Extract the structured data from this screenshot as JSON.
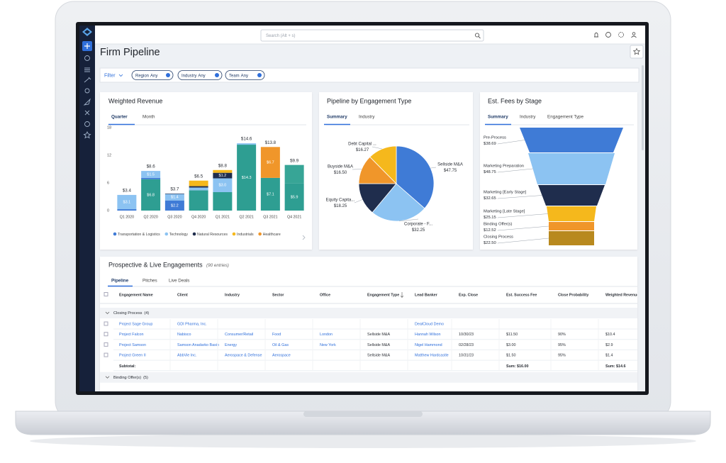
{
  "app": {
    "search_placeholder": "Search (Alt + s)",
    "page_title": "Firm Pipeline"
  },
  "filters": {
    "label": "Filter",
    "items": [
      {
        "name": "Region",
        "value": "Any"
      },
      {
        "name": "Industry",
        "value": "Any"
      },
      {
        "name": "Team",
        "value": "Any"
      }
    ]
  },
  "chart_data": [
    {
      "type": "bar",
      "stacked": true,
      "title": "Weighted Revenue",
      "tabs": [
        "Quarter",
        "Month"
      ],
      "categories": [
        "Q1 2020",
        "Q2 2020",
        "Q3 2020",
        "Q4 2020",
        "Q1 2021",
        "Q2 2021",
        "Q3 2021",
        "Q4 2021"
      ],
      "ylim": [
        0,
        18
      ],
      "yticks": [
        0,
        6,
        12,
        18
      ],
      "grid": false,
      "series": [
        {
          "color": "#2e9e92",
          "values": [
            0,
            6.8,
            0,
            4.4,
            4.0,
            14.3,
            7.1,
            5.9
          ],
          "value_labels": [
            null,
            "$6.8",
            null,
            null,
            null,
            "$14.3",
            "$7.1",
            "$5.9"
          ]
        },
        {
          "color": "#37a596",
          "values": [
            0,
            0,
            0,
            0,
            0,
            0,
            0,
            4.0
          ]
        },
        {
          "name": "Transportation & Logistics",
          "color": "#3f7bd6",
          "values": [
            0.3,
            0.3,
            2.2,
            0,
            0,
            0,
            0,
            0
          ],
          "value_labels": [
            null,
            null,
            "$2.2",
            null,
            null,
            null,
            null,
            null
          ]
        },
        {
          "name": "Technology",
          "color": "#8cc3f2",
          "values": [
            3.1,
            1.5,
            1.4,
            0.6,
            3.0,
            0.3,
            0,
            0
          ],
          "value_labels": [
            "$3.1",
            "$1.5",
            "$1.4",
            null,
            "$3.0",
            null,
            null,
            null
          ]
        },
        {
          "name": "Natural Resources",
          "color": "#1f2d4d",
          "values": [
            0,
            0,
            0.1,
            0.3,
            1.2,
            0,
            0,
            0
          ],
          "value_labels": [
            null,
            null,
            null,
            null,
            "$1.2",
            null,
            null,
            null
          ]
        },
        {
          "name": "Industrials",
          "color": "#f5b81c",
          "values": [
            0,
            0,
            0,
            1.2,
            0.6,
            0,
            0,
            0
          ]
        },
        {
          "name": "Healthcare",
          "color": "#f0962a",
          "values": [
            0,
            0,
            0,
            0,
            0,
            0,
            6.7,
            0
          ],
          "value_labels": [
            null,
            null,
            null,
            null,
            null,
            null,
            "$6.7",
            null
          ]
        }
      ],
      "totals": [
        3.4,
        8.6,
        3.7,
        6.5,
        8.8,
        14.6,
        13.8,
        9.9
      ],
      "total_labels": [
        "$3.4",
        "$8.6",
        "$3.7",
        "$6.5",
        "$8.8",
        "$14.6",
        "$13.8",
        "$9.9"
      ]
    },
    {
      "type": "pie",
      "title": "Pipeline by Engagement Type",
      "tabs": [
        "Summary",
        "Industry"
      ],
      "categories": [
        "Sellside M&A",
        "Corporate - F...",
        "Equity Capita...",
        "Buyside M&A",
        "Debt Capital ..."
      ],
      "values": [
        47.75,
        32.25,
        18.25,
        16.5,
        16.27
      ],
      "value_labels": [
        "$47.75",
        "$32.25",
        "$18.25",
        "$16.50",
        "$16.27"
      ],
      "colors": [
        "#3f7bd6",
        "#8cc3f2",
        "#1f2d4d",
        "#f0962a",
        "#f5b81c"
      ]
    },
    {
      "type": "funnel",
      "title": "Est. Fees by Stage",
      "tabs": [
        "Summary",
        "Industry",
        "Engagement Type"
      ],
      "categories": [
        "Pre-Process",
        "Marketing Preparation",
        "Marketing [Early Stage]",
        "Marketing [Late Stage]",
        "Binding Offer(s)",
        "Closing Process"
      ],
      "values": [
        38.69,
        48.75,
        32.65,
        25.15,
        12.52,
        22.5
      ],
      "value_labels": [
        "$38.69",
        "$48.75",
        "$32.65",
        "$25.15",
        "$12.52",
        "$22.50"
      ],
      "colors": [
        "#3f7bd6",
        "#8cc3f2",
        "#1f2d4d",
        "#f5b81c",
        "#f0962a",
        "#b8891e"
      ]
    }
  ],
  "engagements": {
    "title": "Prospective & Live Engagements",
    "count": "(90 entries)",
    "tabs": [
      "Pipeline",
      "Pitches",
      "Live Deals"
    ],
    "columns": [
      "Engagement Name",
      "Client",
      "Industry",
      "Sector",
      "Office",
      "Engagement Type",
      "Lead Banker",
      "Exp. Close",
      "Est. Success Fee",
      "Close Probability",
      "Weighted Revenue"
    ],
    "groups": [
      {
        "label": "Closing Process",
        "count": "(4)",
        "rows": [
          [
            "Project Sage Group",
            "GDI Pharma, Inc.",
            null,
            null,
            null,
            null,
            "DealCloud Demo",
            null,
            null,
            null,
            null
          ],
          [
            "Project Falcon",
            "Nabisco",
            "Consumer/Retail",
            "Food",
            "London",
            "Sellside M&A",
            "Hannah Wilson",
            "10/30/23",
            "$11.50",
            "90%",
            "$10.4"
          ],
          [
            "Project Samson",
            "Samson Anadarko Basin",
            "Energy",
            "Oil & Gas",
            "New York",
            "Sellside M&A",
            "Nigel Hammond",
            "02/28/23",
            "$3.00",
            "95%",
            "$2.9"
          ],
          [
            "Project Green II",
            "AbbVie Inc.",
            "Aerospace & Defense",
            "Aerospace",
            null,
            "Sellside M&A",
            "Matthew Hardcastle",
            "10/31/23",
            "$1.50",
            "95%",
            "$1.4"
          ]
        ],
        "subtotal": {
          "label": "Subtotal:",
          "est_success_fee": "Sum: $16.00",
          "weighted_revenue": "Sum: $14.6"
        }
      },
      {
        "label": "Binding Offer(s)",
        "count": "(5)"
      }
    ]
  }
}
